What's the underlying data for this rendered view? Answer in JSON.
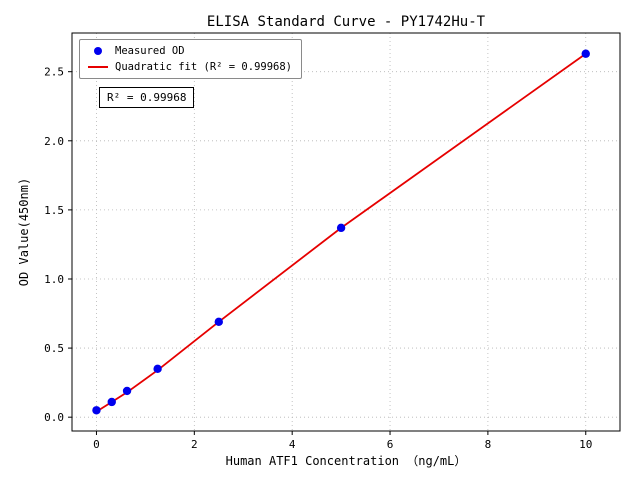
{
  "chart_data": {
    "type": "scatter",
    "title": "ELISA Standard Curve - PY1742Hu-T",
    "xlabel": "Human ATF1 Concentration （ng/mL）",
    "ylabel": "OD Value(450nm)",
    "annotation": "R² = 0.99968",
    "xlim": [
      -0.5,
      10.7
    ],
    "ylim": [
      -0.1,
      2.78
    ],
    "grid": true,
    "legend_position": "upper left",
    "xticks": [
      {
        "v": 0,
        "label": "0"
      },
      {
        "v": 2,
        "label": "2"
      },
      {
        "v": 4,
        "label": "4"
      },
      {
        "v": 6,
        "label": "6"
      },
      {
        "v": 8,
        "label": "8"
      },
      {
        "v": 10,
        "label": "10"
      }
    ],
    "yticks": [
      {
        "v": 0.0,
        "label": "0.0"
      },
      {
        "v": 0.5,
        "label": "0.5"
      },
      {
        "v": 1.0,
        "label": "1.0"
      },
      {
        "v": 1.5,
        "label": "1.5"
      },
      {
        "v": 2.0,
        "label": "2.0"
      },
      {
        "v": 2.5,
        "label": "2.5"
      }
    ],
    "series": [
      {
        "name": "Measured OD",
        "kind": "scatter",
        "color": "#0000ee",
        "x": [
          0,
          0.3125,
          0.625,
          1.25,
          2.5,
          5,
          10
        ],
        "y": [
          0.05,
          0.11,
          0.19,
          0.35,
          0.69,
          1.37,
          2.63
        ]
      },
      {
        "name": "Quadratic fit (R² = 0.99968)",
        "kind": "line",
        "color": "#e60000",
        "x": [
          0,
          0.3125,
          0.625,
          1.25,
          2.5,
          5,
          10
        ],
        "y": [
          0.04,
          0.11,
          0.18,
          0.34,
          0.69,
          1.37,
          2.63
        ]
      }
    ],
    "colors": {
      "grid": "#b5b5b5",
      "axes": "#000000",
      "background": "#ffffff"
    }
  }
}
